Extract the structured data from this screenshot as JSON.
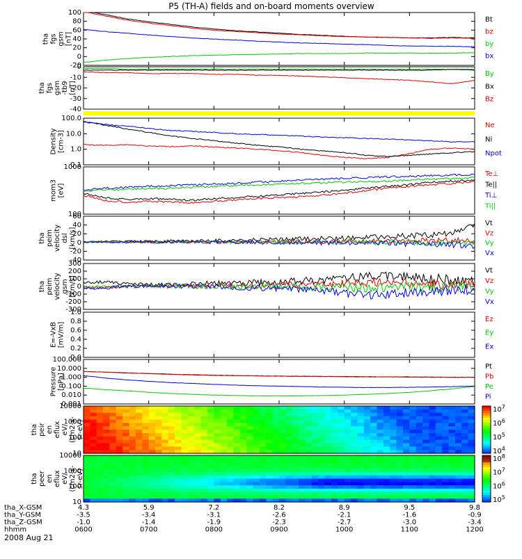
{
  "title": "P5 (TH-A) fields and on-board moments overview",
  "colors": {
    "black": "#000000",
    "red": "#e00000",
    "green": "#00c800",
    "blue": "#0000e0",
    "yellow": "#ffff00"
  },
  "chart_data": [
    {
      "type": "line",
      "ylabel": [
        "tha",
        "fgs",
        "gsm",
        "[nT]"
      ],
      "yticks": [
        "100",
        "80",
        "60",
        "40",
        "20",
        "0",
        "-20"
      ],
      "ylim": [
        -25,
        100
      ],
      "series": [
        {
          "name": "Bt",
          "color": "red_black",
          "values": [
            105,
            95,
            85,
            78,
            72,
            66,
            61,
            57,
            54,
            51,
            48,
            46,
            44,
            42,
            41,
            40,
            40,
            41,
            40
          ],
          "color_key": "black"
        },
        {
          "name": "bz",
          "values": [
            102,
            92,
            82,
            75,
            69,
            63,
            58,
            55,
            52,
            49,
            47,
            45,
            43,
            42,
            41,
            40,
            39,
            40,
            39
          ],
          "color_key": "red"
        },
        {
          "name": "by",
          "values": [
            -18,
            -13,
            -9,
            -6,
            -4,
            -2,
            -1,
            0,
            1,
            2,
            3,
            3,
            3,
            4,
            4,
            4,
            4,
            4,
            5
          ],
          "color_key": "green"
        },
        {
          "name": "bx",
          "values": [
            60,
            55,
            51,
            47,
            43,
            40,
            37,
            35,
            32,
            30,
            28,
            27,
            25,
            24,
            22,
            21,
            20,
            20,
            19
          ],
          "color_key": "blue"
        }
      ]
    },
    {
      "type": "line",
      "ylabel": [
        "tha",
        "fgs",
        "gsm",
        "-tb9",
        "[nT]"
      ],
      "yticks": [
        "0",
        "-10",
        "-20",
        "-30",
        "-40"
      ],
      "ylim": [
        -47,
        3
      ],
      "series": [
        {
          "name": "By",
          "values": [
            1,
            1,
            0,
            0,
            0,
            0,
            0,
            0,
            0,
            0,
            0,
            0,
            0,
            0,
            0,
            0,
            0,
            0,
            0
          ],
          "color_key": "green"
        },
        {
          "name": "Bx",
          "values": [
            -1,
            -1,
            -1,
            -1,
            -1,
            -1,
            -1,
            -1,
            -1,
            -1,
            -1,
            -1,
            -1,
            -1,
            -1,
            -1,
            -1,
            0,
            -1
          ],
          "color_key": "black"
        },
        {
          "name": "Bz",
          "values": [
            -3,
            -4,
            -4,
            -5,
            -5,
            -5,
            -6,
            -6,
            -7,
            -7,
            -8,
            -9,
            -10,
            -11,
            -12,
            -13,
            -15,
            -17,
            -13
          ],
          "color_key": "red"
        }
      ]
    },
    {
      "type": "line",
      "ylabel": [
        "Density",
        "[cm-3]"
      ],
      "yticks": [
        "100.0",
        "10.0",
        "1.0",
        "0.1"
      ],
      "log": true,
      "ylim": [
        0.1,
        100
      ],
      "series": [
        {
          "name": "Ne",
          "values": [
            2,
            1.8,
            2,
            1.6,
            1.5,
            1.6,
            1.4,
            1.2,
            1,
            0.8,
            0.6,
            0.4,
            0.3,
            0.25,
            0.3,
            0.5,
            1,
            1.2,
            1
          ],
          "color_key": "red"
        },
        {
          "name": "Ni",
          "values": [
            60,
            35,
            20,
            12,
            7,
            5,
            3.5,
            2.5,
            1.8,
            1.4,
            1,
            0.8,
            0.6,
            0.4,
            0.35,
            0.4,
            0.5,
            0.6,
            0.7
          ],
          "color_key": "black"
        },
        {
          "name": "Npot",
          "values": [
            55,
            40,
            30,
            22,
            16,
            14,
            12,
            10,
            9,
            8,
            7,
            6,
            5.5,
            5,
            4.5,
            4,
            3.5,
            3,
            3
          ],
          "color_key": "blue"
        }
      ]
    },
    {
      "type": "line",
      "ylabel": [
        "mom3",
        "[eV]"
      ],
      "yticks": [
        "1000",
        "100"
      ],
      "log": true,
      "ylim": [
        40,
        4000
      ],
      "series": [
        {
          "name": "Te⊥",
          "values": [
            250,
            150,
            130,
            140,
            130,
            120,
            140,
            160,
            180,
            200,
            220,
            250,
            300,
            400,
            500,
            600,
            700,
            800,
            900
          ],
          "color_key": "red"
        },
        {
          "name": "Te||",
          "values": [
            300,
            200,
            170,
            180,
            170,
            150,
            180,
            200,
            230,
            260,
            300,
            350,
            400,
            500,
            600,
            700,
            900,
            1000,
            1100
          ],
          "color_key": "black"
        },
        {
          "name": "Ti⊥",
          "values": [
            400,
            500,
            550,
            600,
            650,
            700,
            750,
            800,
            900,
            1000,
            1100,
            1200,
            1300,
            1400,
            1500,
            1600,
            1700,
            1800,
            1900
          ],
          "color_key": "blue"
        },
        {
          "name": "Ti||",
          "values": [
            380,
            420,
            450,
            480,
            500,
            550,
            600,
            650,
            700,
            750,
            800,
            850,
            900,
            950,
            1000,
            1100,
            1200,
            1300,
            1400
          ],
          "color_key": "green"
        }
      ]
    },
    {
      "type": "line",
      "ylabel": [
        "tha",
        "peim",
        "velocity",
        "dsl",
        "[km/s]"
      ],
      "yticks": [
        "60",
        "40",
        "20",
        "0",
        "-20",
        "-40"
      ],
      "ylim": [
        -45,
        65
      ],
      "series": [
        {
          "name": "Vt",
          "values": [
            0,
            1,
            2,
            2,
            3,
            3,
            4,
            5,
            6,
            7,
            8,
            9,
            10,
            12,
            14,
            16,
            18,
            25,
            40
          ],
          "color_key": "black"
        },
        {
          "name": "Vz",
          "values": [
            0,
            0,
            0,
            0,
            0,
            0,
            0,
            0,
            0,
            1,
            1,
            1,
            1,
            1,
            2,
            2,
            3,
            4,
            5
          ],
          "color_key": "red"
        },
        {
          "name": "Vy",
          "values": [
            0,
            0,
            0,
            0,
            0,
            0,
            0,
            0,
            0,
            0,
            0,
            0,
            0,
            0,
            0,
            -1,
            -1,
            -2,
            -3
          ],
          "color_key": "green"
        },
        {
          "name": "Vx",
          "values": [
            0,
            0,
            0,
            0,
            0,
            0,
            0,
            0,
            -1,
            -1,
            -1,
            -2,
            -2,
            -3,
            -3,
            -4,
            -5,
            -6,
            -8
          ],
          "color_key": "blue"
        }
      ]
    },
    {
      "type": "line",
      "ylabel": [
        "tha",
        "peim",
        "velocity",
        "gsm",
        "[km/s]"
      ],
      "yticks": [
        "300",
        "200",
        "100",
        "0",
        "-100",
        "-200",
        "-300"
      ],
      "ylim": [
        -300,
        300
      ],
      "series": [
        {
          "name": "Vt",
          "values": [
            50,
            60,
            30,
            20,
            20,
            30,
            40,
            40,
            50,
            60,
            70,
            80,
            110,
            130,
            150,
            120,
            100,
            80,
            60
          ],
          "color_key": "black"
        },
        {
          "name": "Vz",
          "values": [
            -20,
            -10,
            0,
            5,
            5,
            5,
            5,
            10,
            10,
            15,
            20,
            30,
            40,
            50,
            50,
            40,
            30,
            20,
            20
          ],
          "color_key": "red"
        },
        {
          "name": "Vy",
          "values": [
            -10,
            0,
            5,
            5,
            5,
            5,
            5,
            0,
            0,
            -5,
            -5,
            -10,
            -10,
            -15,
            -15,
            -10,
            -10,
            -5,
            0
          ],
          "color_key": "green"
        },
        {
          "name": "Vx",
          "values": [
            -30,
            -20,
            0,
            5,
            5,
            5,
            0,
            -10,
            -20,
            -30,
            -40,
            -60,
            -90,
            -110,
            -100,
            -80,
            -60,
            -40,
            -30
          ],
          "color_key": "blue"
        }
      ]
    },
    {
      "type": "line",
      "ylabel": [
        "E=-VxB",
        "[mV/m]"
      ],
      "yticks": [
        "1.0",
        "0.8",
        "0.6",
        "0.4",
        "0.2",
        "0.0"
      ],
      "ylim": [
        0,
        1
      ],
      "series": [
        {
          "name": "Ez",
          "values": [],
          "color_key": "red"
        },
        {
          "name": "Ey",
          "values": [],
          "color_key": "green"
        },
        {
          "name": "Ex",
          "values": [],
          "color_key": "blue"
        }
      ]
    },
    {
      "type": "line",
      "ylabel": [
        "Pressure",
        "[nPa]"
      ],
      "yticks": [
        "100.000",
        "10.000",
        "1.000",
        "0.100",
        "0.010",
        "0.001"
      ],
      "log": true,
      "ylim": [
        0.001,
        100
      ],
      "series": [
        {
          "name": "Pt",
          "values": [
            4.5,
            3.8,
            3.1,
            2.6,
            2.2,
            1.9,
            1.7,
            1.55,
            1.45,
            1.35,
            1.3,
            1.25,
            1.2,
            1.15,
            1.12,
            1.1,
            1.05,
            1.0,
            1.0
          ],
          "color_key": "black"
        },
        {
          "name": "Pb",
          "values": [
            4.4,
            3.7,
            3.0,
            2.5,
            2.1,
            1.8,
            1.6,
            1.5,
            1.4,
            1.3,
            1.25,
            1.2,
            1.15,
            1.1,
            1.08,
            1.05,
            1.0,
            0.98,
            0.97
          ],
          "color_key": "red"
        },
        {
          "name": "Pe",
          "values": [
            0.06,
            0.04,
            0.03,
            0.02,
            0.015,
            0.012,
            0.01,
            0.009,
            0.008,
            0.008,
            0.008,
            0.009,
            0.01,
            0.012,
            0.015,
            0.02,
            0.03,
            0.05,
            0.09
          ],
          "color_key": "green"
        },
        {
          "name": "Pi",
          "values": [
            1.5,
            0.8,
            0.5,
            0.35,
            0.25,
            0.2,
            0.16,
            0.13,
            0.11,
            0.1,
            0.09,
            0.08,
            0.075,
            0.07,
            0.07,
            0.075,
            0.08,
            0.09,
            0.1
          ],
          "color_key": "blue"
        }
      ]
    },
    {
      "type": "heatmap",
      "ylabel": [
        "tha",
        "peir",
        "en",
        "eflux",
        "eV/",
        "(cm2-s-",
        "sr-eV)"
      ],
      "yticks": [
        "10000",
        "1000",
        "100",
        "10"
      ],
      "colorbar_ticks": [
        "10^7",
        "10^6",
        "10^5",
        "10^4"
      ]
    },
    {
      "type": "heatmap",
      "ylabel": [
        "tha",
        "peer",
        "en",
        "eflux",
        "eV/",
        "(cm2-s-",
        "sr-eV)"
      ],
      "yticks": [
        "10000",
        "1000",
        "100",
        "10"
      ],
      "colorbar_ticks": [
        "10^8",
        "10^7",
        "10^6",
        "10^5"
      ]
    }
  ],
  "xaxis": {
    "rows": [
      {
        "label": "tha_X-GSM",
        "values": [
          "4.3",
          "5.9",
          "7.2",
          "8.2",
          "8.9",
          "9.5",
          "9.8"
        ]
      },
      {
        "label": "tha_Y-GSM",
        "values": [
          "-3.5",
          "-3.4",
          "-3.1",
          "-2.6",
          "-2.1",
          "-1.6",
          "-0.9"
        ]
      },
      {
        "label": "tha_Z-GSM",
        "values": [
          "-1.0",
          "-1.4",
          "-1.9",
          "-2.3",
          "-2.7",
          "-3.0",
          "-3.4"
        ]
      },
      {
        "label": "hhmm",
        "values": [
          "0600",
          "0700",
          "0800",
          "0900",
          "1000",
          "1100",
          "1200"
        ]
      }
    ],
    "date": "2008 Aug 21"
  },
  "legend_labels": [
    [
      "Bt",
      "bz",
      "by",
      "bx"
    ],
    [
      "By",
      "Bx",
      "Bz"
    ],
    [
      "Ne",
      "Ni",
      "Npot"
    ],
    [
      "Te⊥",
      "Te||",
      "Ti⊥",
      "Ti||"
    ],
    [
      "Vt",
      "Vz",
      "Vy",
      "Vx"
    ],
    [
      "Vt",
      "Vz",
      "Vy",
      "Vx"
    ],
    [
      "Ez",
      "Ey",
      "Ex"
    ],
    [
      "Pt",
      "Pb",
      "Pe",
      "Pi"
    ]
  ]
}
